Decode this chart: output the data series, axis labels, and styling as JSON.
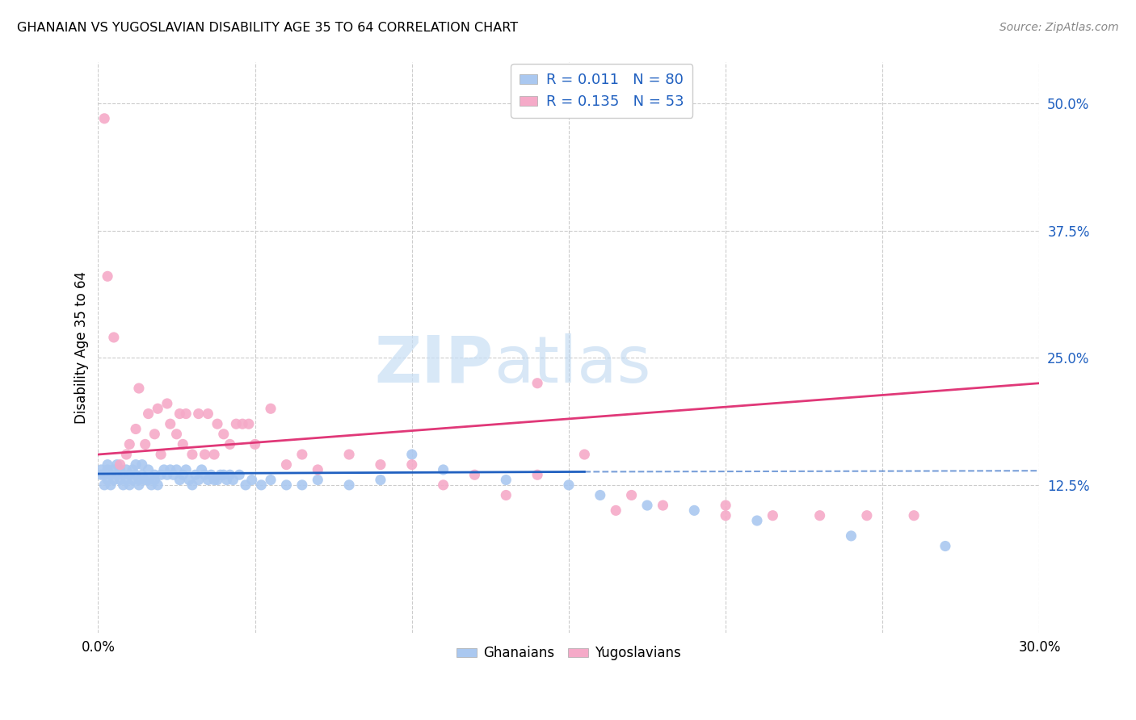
{
  "title": "GHANAIAN VS YUGOSLAVIAN DISABILITY AGE 35 TO 64 CORRELATION CHART",
  "source": "Source: ZipAtlas.com",
  "ylabel": "Disability Age 35 to 64",
  "xlim": [
    0.0,
    0.3
  ],
  "ylim": [
    -0.02,
    0.54
  ],
  "yticks": [
    0.125,
    0.25,
    0.375,
    0.5
  ],
  "ytick_labels": [
    "12.5%",
    "25.0%",
    "37.5%",
    "50.0%"
  ],
  "xtick_positions": [
    0.0,
    0.05,
    0.1,
    0.15,
    0.2,
    0.25,
    0.3
  ],
  "xtick_labels": [
    "0.0%",
    "",
    "",
    "",
    "",
    "",
    "30.0%"
  ],
  "ghanaian_color": "#aac8f0",
  "yugoslavian_color": "#f5aac8",
  "ghanaian_line_color": "#2060c0",
  "yugoslavian_line_color": "#e03878",
  "legend_text_color": "#2060c0",
  "R_ghanaian": 0.011,
  "N_ghanaian": 80,
  "R_yugoslavian": 0.135,
  "N_yugoslavian": 53,
  "ghanaian_x": [
    0.001,
    0.001,
    0.002,
    0.002,
    0.003,
    0.003,
    0.003,
    0.004,
    0.004,
    0.005,
    0.005,
    0.006,
    0.006,
    0.007,
    0.007,
    0.008,
    0.008,
    0.009,
    0.009,
    0.01,
    0.01,
    0.011,
    0.011,
    0.012,
    0.012,
    0.013,
    0.013,
    0.014,
    0.014,
    0.015,
    0.016,
    0.016,
    0.017,
    0.018,
    0.018,
    0.019,
    0.02,
    0.021,
    0.022,
    0.023,
    0.024,
    0.025,
    0.026,
    0.027,
    0.028,
    0.029,
    0.03,
    0.031,
    0.032,
    0.033,
    0.034,
    0.035,
    0.036,
    0.037,
    0.038,
    0.039,
    0.04,
    0.041,
    0.042,
    0.043,
    0.045,
    0.047,
    0.049,
    0.052,
    0.055,
    0.06,
    0.065,
    0.07,
    0.08,
    0.09,
    0.1,
    0.11,
    0.13,
    0.15,
    0.16,
    0.175,
    0.19,
    0.21,
    0.24,
    0.27
  ],
  "ghanaian_y": [
    0.135,
    0.14,
    0.125,
    0.135,
    0.13,
    0.14,
    0.145,
    0.135,
    0.125,
    0.13,
    0.14,
    0.135,
    0.145,
    0.13,
    0.14,
    0.125,
    0.135,
    0.13,
    0.14,
    0.125,
    0.135,
    0.13,
    0.14,
    0.135,
    0.145,
    0.13,
    0.125,
    0.135,
    0.145,
    0.13,
    0.14,
    0.13,
    0.125,
    0.135,
    0.13,
    0.125,
    0.135,
    0.14,
    0.135,
    0.14,
    0.135,
    0.14,
    0.13,
    0.135,
    0.14,
    0.13,
    0.125,
    0.135,
    0.13,
    0.14,
    0.135,
    0.13,
    0.135,
    0.13,
    0.13,
    0.135,
    0.135,
    0.13,
    0.135,
    0.13,
    0.135,
    0.125,
    0.13,
    0.125,
    0.13,
    0.125,
    0.125,
    0.13,
    0.125,
    0.13,
    0.155,
    0.14,
    0.13,
    0.125,
    0.115,
    0.105,
    0.1,
    0.09,
    0.075,
    0.065
  ],
  "yugoslavian_x": [
    0.002,
    0.003,
    0.005,
    0.007,
    0.009,
    0.01,
    0.012,
    0.013,
    0.015,
    0.016,
    0.018,
    0.019,
    0.02,
    0.022,
    0.023,
    0.025,
    0.026,
    0.027,
    0.028,
    0.03,
    0.032,
    0.034,
    0.035,
    0.037,
    0.038,
    0.04,
    0.042,
    0.044,
    0.046,
    0.048,
    0.05,
    0.055,
    0.06,
    0.065,
    0.07,
    0.08,
    0.09,
    0.1,
    0.11,
    0.12,
    0.13,
    0.14,
    0.155,
    0.165,
    0.18,
    0.2,
    0.215,
    0.23,
    0.245,
    0.26,
    0.14,
    0.17,
    0.2
  ],
  "yugoslavian_y": [
    0.485,
    0.33,
    0.27,
    0.145,
    0.155,
    0.165,
    0.18,
    0.22,
    0.165,
    0.195,
    0.175,
    0.2,
    0.155,
    0.205,
    0.185,
    0.175,
    0.195,
    0.165,
    0.195,
    0.155,
    0.195,
    0.155,
    0.195,
    0.155,
    0.185,
    0.175,
    0.165,
    0.185,
    0.185,
    0.185,
    0.165,
    0.2,
    0.145,
    0.155,
    0.14,
    0.155,
    0.145,
    0.145,
    0.125,
    0.135,
    0.115,
    0.135,
    0.155,
    0.1,
    0.105,
    0.095,
    0.095,
    0.095,
    0.095,
    0.095,
    0.225,
    0.115,
    0.105
  ],
  "watermark_zip": "ZIP",
  "watermark_atlas": "atlas",
  "grid_color": "#cccccc",
  "background_color": "#ffffff"
}
